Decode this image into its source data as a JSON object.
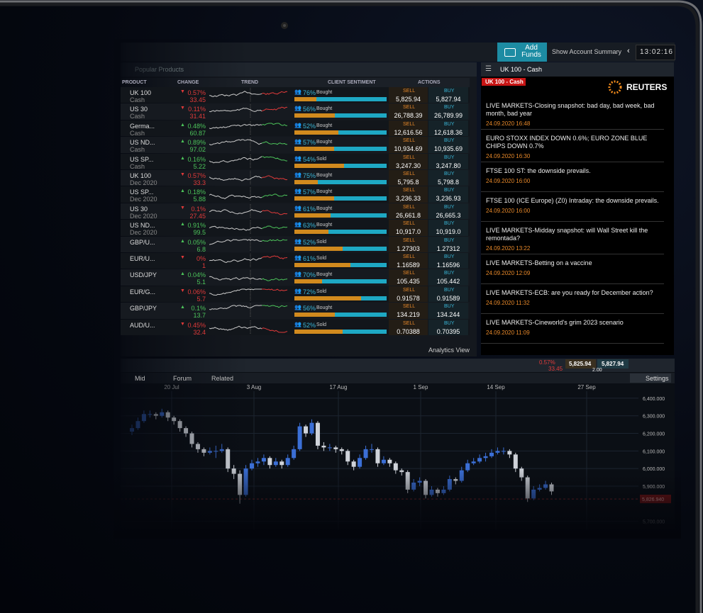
{
  "header": {
    "add_funds": "Add Funds",
    "account_summary": "Show Account Summary",
    "time": "13:02:16"
  },
  "products": {
    "tab": "Popular Products",
    "columns": [
      "PRODUCT",
      "CHANGE",
      "TREND",
      "CLIENT SENTIMENT",
      "ACTIONS"
    ],
    "sell_label": "SELL",
    "buy_label": "BUY",
    "footer": "Analytics View",
    "rows": [
      {
        "name": "UK 100",
        "sub": "Cash",
        "direction": "down",
        "change": "0.57%",
        "change_value": "33.45",
        "sentiment": {
          "value": 76,
          "label": "76%"
        },
        "side": "Bought",
        "sell": "5,825.94",
        "buy": "5,827.94"
      },
      {
        "name": "US 30",
        "sub": "Cash",
        "direction": "down",
        "change": "0.11%",
        "change_value": "31.41",
        "sentiment": {
          "value": 56,
          "label": "56%"
        },
        "side": "Bought",
        "sell": "26,788.39",
        "buy": "26,789.99"
      },
      {
        "name": "Germa...",
        "sub": "Cash",
        "direction": "up",
        "change": "0.48%",
        "change_value": "60.87",
        "sentiment": {
          "value": 52,
          "label": "52%"
        },
        "side": "Bought",
        "sell": "12,616.56",
        "buy": "12,618.36"
      },
      {
        "name": "US ND...",
        "sub": "Cash",
        "direction": "up",
        "change": "0.89%",
        "change_value": "97.02",
        "sentiment": {
          "value": 57,
          "label": "57%"
        },
        "side": "Bought",
        "sell": "10,934.69",
        "buy": "10,935.69"
      },
      {
        "name": "US SP...",
        "sub": "Cash",
        "direction": "up",
        "change": "0.16%",
        "change_value": "5.22",
        "sentiment": {
          "value": 54,
          "label": "54%"
        },
        "side": "Sold",
        "sell": "3,247.30",
        "buy": "3,247.80"
      },
      {
        "name": "UK 100",
        "sub": "Dec 2020",
        "direction": "down",
        "change": "0.57%",
        "change_value": "33.3",
        "sentiment": {
          "value": 75,
          "label": "75%"
        },
        "side": "Bought",
        "sell": "5,795.8",
        "buy": "5,798.8"
      },
      {
        "name": "US SP...",
        "sub": "Dec 2020",
        "direction": "up",
        "change": "0.18%",
        "change_value": "5.88",
        "sentiment": {
          "value": 57,
          "label": "57%"
        },
        "side": "Bought",
        "sell": "3,236.33",
        "buy": "3,236.93"
      },
      {
        "name": "US 30",
        "sub": "Dec 2020",
        "direction": "down",
        "change": "0.1%",
        "change_value": "27.45",
        "sentiment": {
          "value": 61,
          "label": "61%"
        },
        "side": "Bought",
        "sell": "26,661.8",
        "buy": "26,665.3"
      },
      {
        "name": "US ND...",
        "sub": "Dec 2020",
        "direction": "up",
        "change": "0.91%",
        "change_value": "99.5",
        "sentiment": {
          "value": 63,
          "label": "63%"
        },
        "side": "Bought",
        "sell": "10,917.0",
        "buy": "10,919.0"
      },
      {
        "name": "GBP/U...",
        "direction": "up",
        "change": "0.05%",
        "change_value": "6.8",
        "sentiment": {
          "value": 52,
          "label": "52%"
        },
        "side": "Sold",
        "sell": "1.27303",
        "buy": "1.27312"
      },
      {
        "name": "EUR/U...",
        "direction": "down",
        "change": "0%",
        "change_value": "1",
        "sentiment": {
          "value": 61,
          "label": "61%"
        },
        "side": "Sold",
        "sell": "1.16589",
        "buy": "1.16596"
      },
      {
        "name": "USD/JPY",
        "direction": "up",
        "change": "0.04%",
        "change_value": "5.1",
        "sentiment": {
          "value": 70,
          "label": "70%"
        },
        "side": "Bought",
        "sell": "105.435",
        "buy": "105.442"
      },
      {
        "name": "EUR/G...",
        "direction": "down",
        "change": "0.06%",
        "change_value": "5.7",
        "sentiment": {
          "value": 72,
          "label": "72%"
        },
        "side": "Sold",
        "sell": "0.91578",
        "buy": "0.91589"
      },
      {
        "name": "GBP/JPY",
        "direction": "up",
        "change": "0.1%",
        "change_value": "13.7",
        "sentiment": {
          "value": 56,
          "label": "56%"
        },
        "side": "Bought",
        "sell": "134.219",
        "buy": "134.244"
      },
      {
        "name": "AUD/U...",
        "direction": "down",
        "change": "0.45%",
        "change_value": "32.4",
        "sentiment": {
          "value": 52,
          "label": "52%"
        },
        "side": "Sold",
        "sell": "0.70388",
        "buy": "0.70395"
      }
    ]
  },
  "news": {
    "title": "UK 100 - Cash",
    "tag": "UK 100 - Cash",
    "brand": "REUTERS",
    "items": [
      {
        "headline": "LIVE MARKETS-Closing snapshot: bad day, bad week, bad month, bad year",
        "time": "24.09.2020 16:48"
      },
      {
        "headline": "EURO STOXX INDEX DOWN 0.6%; EURO ZONE BLUE CHIPS DOWN 0.7%",
        "time": "24.09.2020 16:30"
      },
      {
        "headline": "FTSE 100 ST: the downside prevails.",
        "time": "24.09.2020 16:00"
      },
      {
        "headline": "FTSE 100 (ICE Europe) (Z0) Intraday: the downside prevails.",
        "time": "24.09.2020 16:00"
      },
      {
        "headline": "LIVE MARKETS-Midday snapshot: will Wall Street kill the remontada?",
        "time": "24.09.2020 13:22"
      },
      {
        "headline": "LIVE MARKETS-Betting on a vaccine",
        "time": "24.09.2020 12:09"
      },
      {
        "headline": "LIVE MARKETS-ECB: are you ready for December action?",
        "time": "24.09.2020 11:32"
      },
      {
        "headline": "LIVE MARKETS-Cineworld's grim 2023 scenario",
        "time": "24.09.2020 11:09"
      }
    ]
  },
  "price_chart": {
    "tabs": [
      "Mid",
      "Forum",
      "Related"
    ],
    "settings": "Settings",
    "quote": {
      "change": "0.57%",
      "change_value": "33.45",
      "sell": "5,825.94",
      "buy": "5,827.94",
      "spread": "2.00"
    },
    "x_labels": [
      "20 Jul",
      "3 Aug",
      "17 Aug",
      "1 Sep",
      "14 Sep",
      "27 Sep"
    ],
    "ylim": [
      5650,
      6440
    ],
    "yticks": [
      {
        "value": 6400,
        "label": "6,400.000"
      },
      {
        "value": 6300,
        "label": "6,300.000"
      },
      {
        "value": 6200,
        "label": "6,200.000"
      },
      {
        "value": 6100,
        "label": "6,100.000"
      },
      {
        "value": 6000,
        "label": "6,000.000"
      },
      {
        "value": 5900,
        "label": "5,900.000"
      },
      {
        "value": 5700,
        "label": "5,700.000"
      }
    ],
    "current": {
      "value": 5826.94,
      "label": "5,826.940"
    },
    "candles": [
      [
        6210,
        6250,
        6190,
        6230
      ],
      [
        6230,
        6290,
        6220,
        6270
      ],
      [
        6270,
        6330,
        6260,
        6310
      ],
      [
        6310,
        6330,
        6290,
        6310
      ],
      [
        6310,
        6320,
        6280,
        6300
      ],
      [
        6300,
        6340,
        6290,
        6320
      ],
      [
        6320,
        6330,
        6270,
        6290
      ],
      [
        6290,
        6300,
        6250,
        6270
      ],
      [
        6270,
        6280,
        6210,
        6230
      ],
      [
        6230,
        6240,
        6180,
        6200
      ],
      [
        6200,
        6210,
        6120,
        6140
      ],
      [
        6140,
        6150,
        6090,
        6110
      ],
      [
        6110,
        6120,
        6070,
        6090
      ],
      [
        6090,
        6120,
        6080,
        6100
      ],
      [
        6100,
        6130,
        6060,
        6100
      ],
      [
        6100,
        6140,
        6090,
        6110
      ],
      [
        6110,
        6120,
        5980,
        6000
      ],
      [
        6000,
        6020,
        5940,
        5970
      ],
      [
        5970,
        5990,
        5800,
        5850
      ],
      [
        5850,
        6020,
        5840,
        6000
      ],
      [
        6000,
        6050,
        5990,
        6030
      ],
      [
        6030,
        6060,
        6010,
        6040
      ],
      [
        6040,
        6080,
        6020,
        6060
      ],
      [
        6060,
        6070,
        6000,
        6020
      ],
      [
        6020,
        6060,
        6010,
        6040
      ],
      [
        6040,
        6050,
        6000,
        6020
      ],
      [
        6020,
        6080,
        6010,
        6060
      ],
      [
        6060,
        6130,
        6050,
        6110
      ],
      [
        6110,
        6260,
        6100,
        6240
      ],
      [
        6240,
        6250,
        6180,
        6200
      ],
      [
        6200,
        6280,
        6190,
        6260
      ],
      [
        6260,
        6270,
        6110,
        6130
      ],
      [
        6130,
        6150,
        6100,
        6120
      ],
      [
        6120,
        6140,
        6100,
        6120
      ],
      [
        6120,
        6130,
        6090,
        6110
      ],
      [
        6110,
        6120,
        6080,
        6100
      ],
      [
        6100,
        6110,
        6020,
        6040
      ],
      [
        6040,
        6050,
        5990,
        6010
      ],
      [
        6010,
        6080,
        6000,
        6060
      ],
      [
        6060,
        6130,
        6050,
        6110
      ],
      [
        6110,
        6140,
        6090,
        6110
      ],
      [
        6110,
        6120,
        6010,
        6030
      ],
      [
        6030,
        6070,
        6020,
        6050
      ],
      [
        6050,
        6060,
        6010,
        6030
      ],
      [
        6030,
        6040,
        5970,
        5990
      ],
      [
        5990,
        6000,
        5960,
        5980
      ],
      [
        5980,
        5990,
        5860,
        5880
      ],
      [
        5880,
        5940,
        5870,
        5920
      ],
      [
        5920,
        5950,
        5900,
        5930
      ],
      [
        5930,
        5940,
        5830,
        5850
      ],
      [
        5850,
        5900,
        5840,
        5880
      ],
      [
        5880,
        5890,
        5840,
        5860
      ],
      [
        5860,
        5900,
        5850,
        5880
      ],
      [
        5880,
        5960,
        5870,
        5940
      ],
      [
        5940,
        5950,
        5910,
        5930
      ],
      [
        5930,
        6010,
        5920,
        5990
      ],
      [
        5990,
        6050,
        5980,
        6030
      ],
      [
        6030,
        6060,
        6020,
        6040
      ],
      [
        6040,
        6080,
        6030,
        6060
      ],
      [
        6060,
        6090,
        6040,
        6070
      ],
      [
        6070,
        6110,
        6060,
        6090
      ],
      [
        6090,
        6120,
        6080,
        6100
      ],
      [
        6100,
        6120,
        6080,
        6100
      ],
      [
        6100,
        6110,
        6060,
        6080
      ],
      [
        6080,
        6090,
        5980,
        6000
      ],
      [
        6000,
        6010,
        5930,
        5950
      ],
      [
        5950,
        5960,
        5810,
        5830
      ],
      [
        5830,
        5900,
        5820,
        5880
      ],
      [
        5880,
        5910,
        5870,
        5890
      ],
      [
        5890,
        5930,
        5880,
        5910
      ],
      [
        5910,
        5920,
        5850,
        5870
      ]
    ]
  }
}
